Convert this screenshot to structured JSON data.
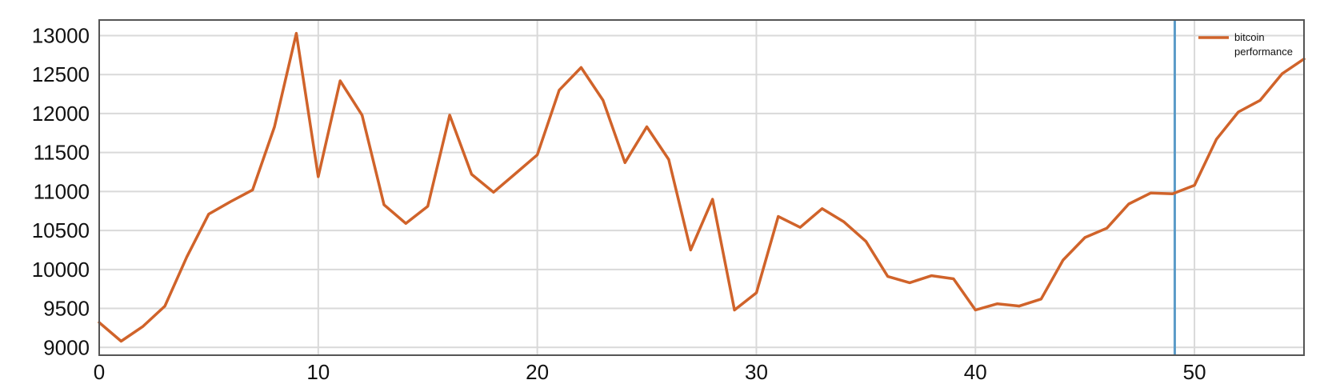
{
  "chart_data": {
    "type": "line",
    "title": "",
    "xlabel": "",
    "ylabel": "",
    "xlim": [
      0,
      55
    ],
    "ylim": [
      8900,
      13200
    ],
    "grid": true,
    "legend_position": "top-right",
    "x_ticks": [
      0,
      10,
      20,
      30,
      40,
      50
    ],
    "y_ticks": [
      9000,
      9500,
      10000,
      10500,
      11000,
      11500,
      12000,
      12500,
      13000
    ],
    "x_tick_labels": [
      "0",
      "10",
      "20",
      "30",
      "40",
      "50"
    ],
    "y_tick_labels": [
      "9000",
      "9500",
      "10000",
      "10500",
      "11000",
      "11500",
      "12000",
      "12500",
      "13000"
    ],
    "series": [
      {
        "name": "bitcoin performance",
        "legend_label_lines": [
          "bitcoin",
          "performance"
        ],
        "color": "#d0632a",
        "x": [
          0,
          1,
          2,
          3,
          4,
          5,
          6,
          7,
          8,
          9,
          10,
          11,
          12,
          13,
          14,
          15,
          16,
          17,
          18,
          19,
          20,
          21,
          22,
          23,
          24,
          25,
          26,
          27,
          28,
          29,
          30,
          31,
          32,
          33,
          34,
          35,
          36,
          37,
          38,
          39,
          40,
          41,
          42,
          43,
          44,
          45,
          46,
          47,
          48,
          49,
          50,
          51,
          52,
          53,
          54,
          55
        ],
        "values": [
          9320,
          9080,
          9270,
          9530,
          10160,
          10710,
          10870,
          11020,
          11830,
          13030,
          11190,
          12420,
          11980,
          10830,
          10590,
          10810,
          11980,
          11220,
          10990,
          11230,
          11470,
          12300,
          12590,
          12170,
          11370,
          11830,
          11410,
          10250,
          10900,
          9480,
          9700,
          10680,
          10540,
          10780,
          10610,
          10360,
          9910,
          9830,
          9920,
          9880,
          9480,
          9560,
          9530,
          9620,
          10120,
          10410,
          10530,
          10840,
          10980,
          10970,
          11080,
          11670,
          12020,
          12170,
          12510,
          12700
        ]
      }
    ],
    "reference_lines": [
      {
        "orientation": "vertical",
        "x": 49.1,
        "color": "#5b9bc8"
      }
    ],
    "colors": {
      "grid": "#d9d9d9",
      "frame": "#555555",
      "background": "#ffffff"
    }
  }
}
